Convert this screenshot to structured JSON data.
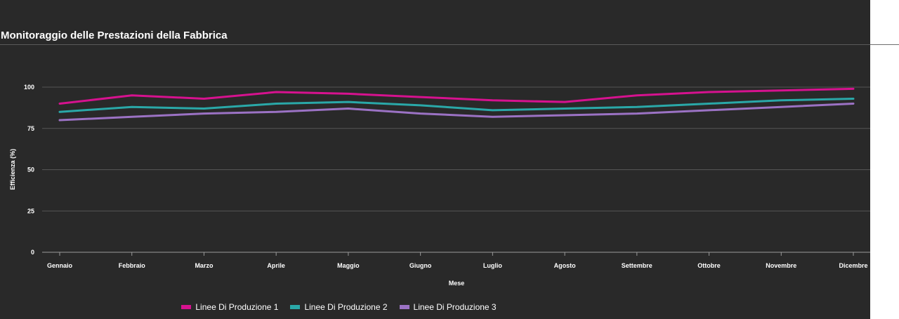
{
  "chart_data": {
    "type": "line",
    "title": "Monitoraggio delle Prestazioni della Fabbrica",
    "xlabel": "Mese",
    "ylabel": "Efficienza (%)",
    "ylim": [
      0,
      100
    ],
    "yticks": [
      0,
      25,
      50,
      75,
      100
    ],
    "grid": true,
    "legend_position": "bottom",
    "categories": [
      "Gennaio",
      "Febbraio",
      "Marzo",
      "Aprile",
      "Maggio",
      "Giugno",
      "Luglio",
      "Agosto",
      "Settembre",
      "Ottobre",
      "Novembre",
      "Dicembre"
    ],
    "series": [
      {
        "name": "Linee Di Produzione 1",
        "color": "#d6128f",
        "values": [
          90,
          95,
          93,
          97,
          96,
          94,
          92,
          91,
          95,
          97,
          98,
          99
        ]
      },
      {
        "name": "Linee Di Produzione 2",
        "color": "#2aa8a8",
        "values": [
          85,
          88,
          87,
          90,
          91,
          89,
          86,
          87,
          88,
          90,
          92,
          93
        ]
      },
      {
        "name": "Linee Di Produzione 3",
        "color": "#9b72c4",
        "values": [
          80,
          82,
          84,
          85,
          87,
          84,
          82,
          83,
          84,
          86,
          88,
          90
        ]
      }
    ]
  }
}
